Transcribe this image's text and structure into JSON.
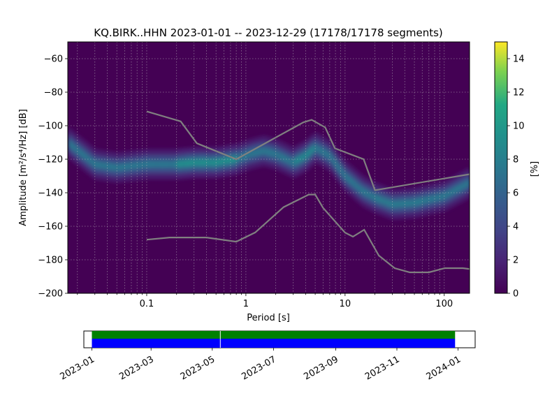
{
  "chart_data": [
    {
      "type": "heatmap",
      "title": "KQ.BIRK..HHN   2023-01-01 -- 2023-12-29  (17178/17178 segments)",
      "xlabel": "Period [s]",
      "ylabel": "Amplitude [m²/s⁴/Hz] [dB]",
      "x_scale": "log",
      "xlim": [
        0.016,
        180
      ],
      "ylim": [
        -200,
        -50
      ],
      "x_ticks": [
        {
          "value": 0.1,
          "label": "0.1"
        },
        {
          "value": 1,
          "label": "1"
        },
        {
          "value": 10,
          "label": "10"
        },
        {
          "value": 100,
          "label": "100"
        }
      ],
      "y_ticks": [
        {
          "value": -60,
          "label": "−60"
        },
        {
          "value": -80,
          "label": "−80"
        },
        {
          "value": -100,
          "label": "−100"
        },
        {
          "value": -120,
          "label": "−120"
        },
        {
          "value": -140,
          "label": "−140"
        },
        {
          "value": -160,
          "label": "−160"
        },
        {
          "value": -180,
          "label": "−180"
        },
        {
          "value": -200,
          "label": "−200"
        }
      ],
      "grid": true,
      "colormap": "viridis",
      "background_color": "#440154",
      "psd_mode": {
        "period": [
          0.016,
          0.03,
          0.05,
          0.1,
          0.2,
          0.3,
          0.5,
          0.8,
          1.1,
          1.5,
          2.0,
          3.0,
          4.0,
          5.0,
          7.0,
          10,
          15,
          20,
          30,
          50,
          100,
          180
        ],
        "db": [
          -110,
          -123,
          -125,
          -123,
          -123,
          -122,
          -122,
          -120,
          -117,
          -115,
          -117,
          -122,
          -118,
          -113,
          -118,
          -130,
          -139,
          -143,
          -147,
          -146,
          -142,
          -134
        ]
      },
      "nhnm": {
        "period": [
          0.1,
          0.22,
          0.32,
          0.8,
          3.8,
          4.6,
          6.3,
          7.9,
          15.4,
          20.0,
          354.8
        ],
        "db": [
          -91.5,
          -97.4,
          -110.5,
          -120.0,
          -98.0,
          -96.5,
          -101.0,
          -113.5,
          -120.0,
          -138.5,
          -126.0
        ]
      },
      "nlnm": {
        "period": [
          0.1,
          0.17,
          0.4,
          0.8,
          1.24,
          2.4,
          4.3,
          5.0,
          6.0,
          10.0,
          12.0,
          15.6,
          21.9,
          31.6,
          45.0,
          70.0,
          101.0,
          154.0,
          328.0
        ],
        "db": [
          -168.0,
          -166.7,
          -166.7,
          -169.2,
          -163.7,
          -148.6,
          -141.1,
          -141.1,
          -149.0,
          -163.8,
          -166.2,
          -162.1,
          -177.5,
          -185.0,
          -187.5,
          -187.5,
          -185.0,
          -185.0,
          -187.5
        ]
      }
    },
    {
      "type": "colorbar",
      "label": "[%]",
      "range": [
        0,
        15
      ],
      "ticks": [
        {
          "value": 0,
          "label": "0"
        },
        {
          "value": 2,
          "label": "2"
        },
        {
          "value": 4,
          "label": "4"
        },
        {
          "value": 6,
          "label": "6"
        },
        {
          "value": 8,
          "label": "8"
        },
        {
          "value": 10,
          "label": "10"
        },
        {
          "value": 12,
          "label": "12"
        },
        {
          "value": 14,
          "label": "14"
        }
      ]
    },
    {
      "type": "timeline",
      "xlim": [
        "2022-12-24",
        "2024-01-18"
      ],
      "x_ticks": [
        {
          "value": "2023-01-01",
          "label": "2023-01"
        },
        {
          "value": "2023-03-01",
          "label": "2023-03"
        },
        {
          "value": "2023-05-01",
          "label": "2023-05"
        },
        {
          "value": "2023-07-01",
          "label": "2023-07"
        },
        {
          "value": "2023-09-01",
          "label": "2023-09"
        },
        {
          "value": "2023-11-01",
          "label": "2023-11"
        },
        {
          "value": "2024-01-01",
          "label": "2024-01"
        }
      ],
      "coverage": {
        "start": "2023-01-01",
        "end": "2023-12-29",
        "gap": "2023-05-09"
      },
      "colors": {
        "available": "#008000",
        "used": "#0000ff"
      }
    }
  ]
}
